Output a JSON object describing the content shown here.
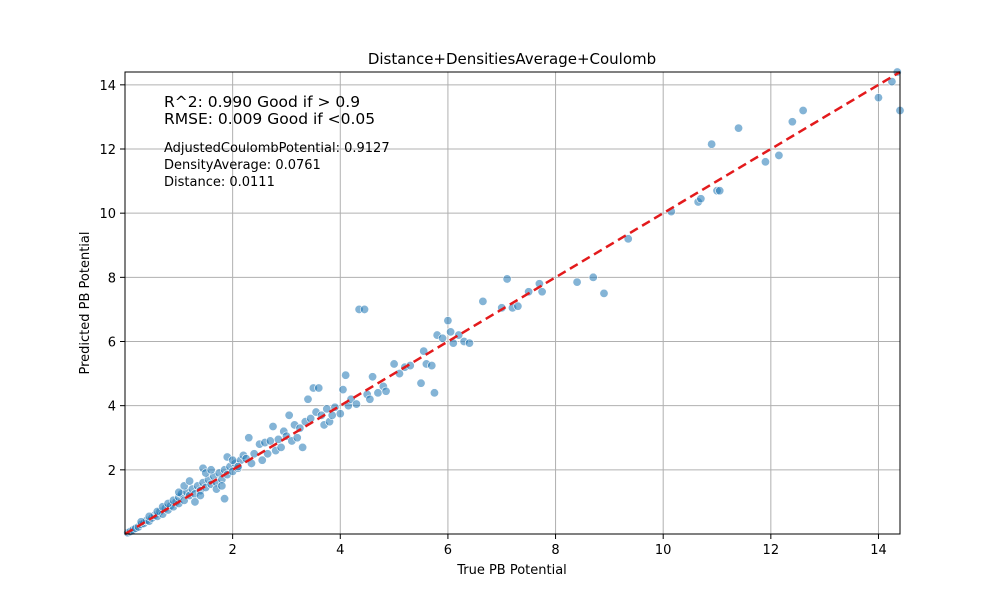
{
  "chart_data": {
    "type": "scatter",
    "title": "Distance+DensitiesAverage+Coulomb",
    "xlabel": "True PB Potential",
    "ylabel": "Predicted PB Potential",
    "xlim": [
      0,
      14.4
    ],
    "ylim": [
      0,
      14.4
    ],
    "xticks": [
      2,
      4,
      6,
      8,
      10,
      12,
      14
    ],
    "yticks": [
      2,
      4,
      6,
      8,
      10,
      12,
      14
    ],
    "grid": true,
    "point_color": "#1f77b4",
    "line_color": "#e31a1c",
    "reference_line": {
      "style": "dashed",
      "from": [
        0,
        0
      ],
      "to": [
        14.4,
        14.4
      ]
    },
    "annotations": {
      "r2": "R^2: 0.990 Good if > 0.9",
      "rmse": "RMSE: 0.009 Good if <0.05",
      "feat1": "AdjustedCoulombPotential: 0.9127",
      "feat2": "DensityAverage: 0.0761",
      "feat3": "Distance: 0.0111"
    },
    "points": [
      [
        0.05,
        0.04
      ],
      [
        0.1,
        0.08
      ],
      [
        0.15,
        0.13
      ],
      [
        0.2,
        0.18
      ],
      [
        0.25,
        0.22
      ],
      [
        0.3,
        0.3
      ],
      [
        0.35,
        0.33
      ],
      [
        0.4,
        0.42
      ],
      [
        0.45,
        0.4
      ],
      [
        0.5,
        0.5
      ],
      [
        0.55,
        0.58
      ],
      [
        0.6,
        0.55
      ],
      [
        0.65,
        0.7
      ],
      [
        0.7,
        0.62
      ],
      [
        0.75,
        0.8
      ],
      [
        0.8,
        0.75
      ],
      [
        0.85,
        0.88
      ],
      [
        0.9,
        0.85
      ],
      [
        0.95,
        1.0
      ],
      [
        1.0,
        0.95
      ],
      [
        0.3,
        0.38
      ],
      [
        0.45,
        0.55
      ],
      [
        0.6,
        0.7
      ],
      [
        0.7,
        0.85
      ],
      [
        0.8,
        0.95
      ],
      [
        0.9,
        1.05
      ],
      [
        1.0,
        1.15
      ],
      [
        1.05,
        1.25
      ],
      [
        1.1,
        1.05
      ],
      [
        1.15,
        1.3
      ],
      [
        1.2,
        1.2
      ],
      [
        1.25,
        1.4
      ],
      [
        1.3,
        1.25
      ],
      [
        1.35,
        1.5
      ],
      [
        1.4,
        1.35
      ],
      [
        1.45,
        1.6
      ],
      [
        1.5,
        1.45
      ],
      [
        1.55,
        1.7
      ],
      [
        1.6,
        1.55
      ],
      [
        1.65,
        1.8
      ],
      [
        1.7,
        1.6
      ],
      [
        1.75,
        1.9
      ],
      [
        1.8,
        1.7
      ],
      [
        1.85,
        2.0
      ],
      [
        1.9,
        1.85
      ],
      [
        1.95,
        2.1
      ],
      [
        2.0,
        1.95
      ],
      [
        2.05,
        2.2
      ],
      [
        2.1,
        2.05
      ],
      [
        2.15,
        2.3
      ],
      [
        1.0,
        1.3
      ],
      [
        1.1,
        1.5
      ],
      [
        1.2,
        1.65
      ],
      [
        1.3,
        1.0
      ],
      [
        1.4,
        1.2
      ],
      [
        1.45,
        2.05
      ],
      [
        1.5,
        1.9
      ],
      [
        1.6,
        2.0
      ],
      [
        1.7,
        1.4
      ],
      [
        1.8,
        1.5
      ],
      [
        1.85,
        1.1
      ],
      [
        1.9,
        2.4
      ],
      [
        2.0,
        2.3
      ],
      [
        2.1,
        2.1
      ],
      [
        2.2,
        2.45
      ],
      [
        2.25,
        2.35
      ],
      [
        2.3,
        3.0
      ],
      [
        2.35,
        2.2
      ],
      [
        2.4,
        2.5
      ],
      [
        2.5,
        2.8
      ],
      [
        2.55,
        2.3
      ],
      [
        2.6,
        2.85
      ],
      [
        2.65,
        2.5
      ],
      [
        2.7,
        2.9
      ],
      [
        2.75,
        3.35
      ],
      [
        2.8,
        2.6
      ],
      [
        2.85,
        2.95
      ],
      [
        2.9,
        2.7
      ],
      [
        2.95,
        3.2
      ],
      [
        3.0,
        3.05
      ],
      [
        3.05,
        3.7
      ],
      [
        3.1,
        2.9
      ],
      [
        3.15,
        3.4
      ],
      [
        3.2,
        3.0
      ],
      [
        3.25,
        3.3
      ],
      [
        3.3,
        2.7
      ],
      [
        3.35,
        3.5
      ],
      [
        3.4,
        4.2
      ],
      [
        3.45,
        3.6
      ],
      [
        3.5,
        4.55
      ],
      [
        3.55,
        3.8
      ],
      [
        3.6,
        4.55
      ],
      [
        3.65,
        3.7
      ],
      [
        3.7,
        3.4
      ],
      [
        3.75,
        3.9
      ],
      [
        3.8,
        3.5
      ],
      [
        3.85,
        3.7
      ],
      [
        3.9,
        3.95
      ],
      [
        4.0,
        3.75
      ],
      [
        4.05,
        4.5
      ],
      [
        4.1,
        4.95
      ],
      [
        4.15,
        4.0
      ],
      [
        4.2,
        4.2
      ],
      [
        4.3,
        4.05
      ],
      [
        4.35,
        7.0
      ],
      [
        4.45,
        7.0
      ],
      [
        4.5,
        4.35
      ],
      [
        4.55,
        4.2
      ],
      [
        4.6,
        4.9
      ],
      [
        4.7,
        4.4
      ],
      [
        4.8,
        4.6
      ],
      [
        4.85,
        4.45
      ],
      [
        5.0,
        5.3
      ],
      [
        5.1,
        5.0
      ],
      [
        5.2,
        5.2
      ],
      [
        5.3,
        5.25
      ],
      [
        5.5,
        4.7
      ],
      [
        5.55,
        5.7
      ],
      [
        5.6,
        5.3
      ],
      [
        5.7,
        5.25
      ],
      [
        5.75,
        4.4
      ],
      [
        5.8,
        6.2
      ],
      [
        5.9,
        6.1
      ],
      [
        6.0,
        6.65
      ],
      [
        6.05,
        6.3
      ],
      [
        6.1,
        5.95
      ],
      [
        6.2,
        6.2
      ],
      [
        6.3,
        6.0
      ],
      [
        6.4,
        5.95
      ],
      [
        6.65,
        7.25
      ],
      [
        7.0,
        7.05
      ],
      [
        7.1,
        7.95
      ],
      [
        7.2,
        7.05
      ],
      [
        7.3,
        7.1
      ],
      [
        7.5,
        7.55
      ],
      [
        7.7,
        7.8
      ],
      [
        7.75,
        7.55
      ],
      [
        8.4,
        7.85
      ],
      [
        8.7,
        8.0
      ],
      [
        8.9,
        7.5
      ],
      [
        9.35,
        9.2
      ],
      [
        10.15,
        10.05
      ],
      [
        10.65,
        10.35
      ],
      [
        10.7,
        10.45
      ],
      [
        11.0,
        10.7
      ],
      [
        11.05,
        10.7
      ],
      [
        10.9,
        12.15
      ],
      [
        11.4,
        12.65
      ],
      [
        11.9,
        11.6
      ],
      [
        12.15,
        11.8
      ],
      [
        12.4,
        12.85
      ],
      [
        12.6,
        13.2
      ],
      [
        14.0,
        13.6
      ],
      [
        14.25,
        14.1
      ],
      [
        14.4,
        13.2
      ],
      [
        14.35,
        14.4
      ]
    ]
  }
}
